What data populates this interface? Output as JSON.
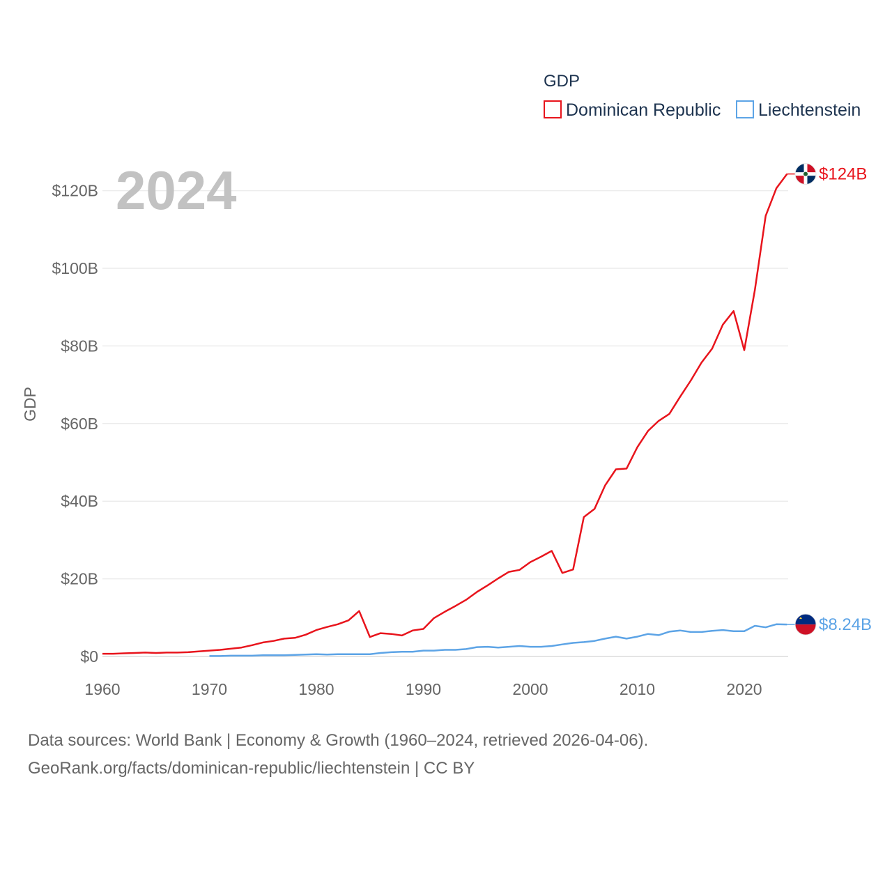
{
  "chart_data": {
    "type": "line",
    "year_label": "2024",
    "ylabel": "GDP",
    "ylim": [
      0,
      130
    ],
    "y_unit": "billion USD",
    "yticks": [
      {
        "value": 0,
        "label": "$0"
      },
      {
        "value": 20,
        "label": "$20B"
      },
      {
        "value": 40,
        "label": "$40B"
      },
      {
        "value": 60,
        "label": "$60B"
      },
      {
        "value": 80,
        "label": "$80B"
      },
      {
        "value": 100,
        "label": "$100B"
      },
      {
        "value": 120,
        "label": "$120B"
      }
    ],
    "xlim": [
      1960,
      2024
    ],
    "xticks": [
      {
        "value": 1960,
        "label": "1960"
      },
      {
        "value": 1970,
        "label": "1970"
      },
      {
        "value": 1980,
        "label": "1980"
      },
      {
        "value": 1990,
        "label": "1990"
      },
      {
        "value": 2000,
        "label": "2000"
      },
      {
        "value": 2010,
        "label": "2010"
      },
      {
        "value": 2020,
        "label": "2020"
      }
    ],
    "legend": {
      "title": "GDP",
      "placement": "top-right"
    },
    "series": [
      {
        "name": "Dominican Republic",
        "color": "#e8141c",
        "end_label": "$124B",
        "flag": "dominican-republic-flag",
        "points": [
          [
            1960,
            0.7
          ],
          [
            1961,
            0.7
          ],
          [
            1962,
            0.8
          ],
          [
            1963,
            0.9
          ],
          [
            1964,
            1.0
          ],
          [
            1965,
            0.9
          ],
          [
            1966,
            1.0
          ],
          [
            1967,
            1.0
          ],
          [
            1968,
            1.1
          ],
          [
            1969,
            1.3
          ],
          [
            1970,
            1.5
          ],
          [
            1971,
            1.7
          ],
          [
            1972,
            2.0
          ],
          [
            1973,
            2.3
          ],
          [
            1974,
            2.9
          ],
          [
            1975,
            3.6
          ],
          [
            1976,
            4.0
          ],
          [
            1977,
            4.6
          ],
          [
            1978,
            4.8
          ],
          [
            1979,
            5.6
          ],
          [
            1980,
            6.8
          ],
          [
            1981,
            7.6
          ],
          [
            1982,
            8.3
          ],
          [
            1983,
            9.3
          ],
          [
            1984,
            11.7
          ],
          [
            1985,
            5.0
          ],
          [
            1986,
            6.0
          ],
          [
            1987,
            5.8
          ],
          [
            1988,
            5.4
          ],
          [
            1989,
            6.7
          ],
          [
            1990,
            7.1
          ],
          [
            1991,
            9.9
          ],
          [
            1992,
            11.5
          ],
          [
            1993,
            13.0
          ],
          [
            1994,
            14.6
          ],
          [
            1995,
            16.6
          ],
          [
            1996,
            18.3
          ],
          [
            1997,
            20.1
          ],
          [
            1998,
            21.8
          ],
          [
            1999,
            22.3
          ],
          [
            2000,
            24.3
          ],
          [
            2001,
            25.7
          ],
          [
            2002,
            27.2
          ],
          [
            2003,
            21.5
          ],
          [
            2004,
            22.4
          ],
          [
            2005,
            35.9
          ],
          [
            2006,
            38.0
          ],
          [
            2007,
            44.1
          ],
          [
            2008,
            48.2
          ],
          [
            2009,
            48.4
          ],
          [
            2010,
            53.9
          ],
          [
            2011,
            58.1
          ],
          [
            2012,
            60.7
          ],
          [
            2013,
            62.5
          ],
          [
            2014,
            66.9
          ],
          [
            2015,
            71.1
          ],
          [
            2016,
            75.7
          ],
          [
            2017,
            79.3
          ],
          [
            2018,
            85.5
          ],
          [
            2019,
            89.0
          ],
          [
            2020,
            78.9
          ],
          [
            2021,
            94.5
          ],
          [
            2022,
            113.5
          ],
          [
            2023,
            120.6
          ],
          [
            2024,
            124.3
          ]
        ]
      },
      {
        "name": "Liechtenstein",
        "color": "#5da4e6",
        "end_label": "$8.24B",
        "flag": "liechtenstein-flag",
        "points": [
          [
            1970,
            0.1
          ],
          [
            1971,
            0.1
          ],
          [
            1972,
            0.2
          ],
          [
            1973,
            0.2
          ],
          [
            1974,
            0.2
          ],
          [
            1975,
            0.3
          ],
          [
            1976,
            0.3
          ],
          [
            1977,
            0.3
          ],
          [
            1978,
            0.4
          ],
          [
            1979,
            0.5
          ],
          [
            1980,
            0.6
          ],
          [
            1981,
            0.5
          ],
          [
            1982,
            0.6
          ],
          [
            1983,
            0.6
          ],
          [
            1984,
            0.6
          ],
          [
            1985,
            0.6
          ],
          [
            1986,
            0.9
          ],
          [
            1987,
            1.1
          ],
          [
            1988,
            1.2
          ],
          [
            1989,
            1.2
          ],
          [
            1990,
            1.5
          ],
          [
            1991,
            1.5
          ],
          [
            1992,
            1.7
          ],
          [
            1993,
            1.7
          ],
          [
            1994,
            1.9
          ],
          [
            1995,
            2.4
          ],
          [
            1996,
            2.5
          ],
          [
            1997,
            2.3
          ],
          [
            1998,
            2.5
          ],
          [
            1999,
            2.7
          ],
          [
            2000,
            2.5
          ],
          [
            2001,
            2.5
          ],
          [
            2002,
            2.7
          ],
          [
            2003,
            3.1
          ],
          [
            2004,
            3.5
          ],
          [
            2005,
            3.7
          ],
          [
            2006,
            4.0
          ],
          [
            2007,
            4.6
          ],
          [
            2008,
            5.1
          ],
          [
            2009,
            4.6
          ],
          [
            2010,
            5.1
          ],
          [
            2011,
            5.8
          ],
          [
            2012,
            5.5
          ],
          [
            2013,
            6.4
          ],
          [
            2014,
            6.7
          ],
          [
            2015,
            6.3
          ],
          [
            2016,
            6.3
          ],
          [
            2017,
            6.6
          ],
          [
            2018,
            6.8
          ],
          [
            2019,
            6.5
          ],
          [
            2020,
            6.5
          ],
          [
            2021,
            7.9
          ],
          [
            2022,
            7.5
          ],
          [
            2023,
            8.3
          ],
          [
            2024,
            8.24
          ]
        ]
      }
    ]
  },
  "footer": {
    "line1": "Data sources: World Bank | Economy & Growth (1960–2024, retrieved 2026-04-06).",
    "line2": "GeoRank.org/facts/dominican-republic/liechtenstein | CC BY"
  }
}
